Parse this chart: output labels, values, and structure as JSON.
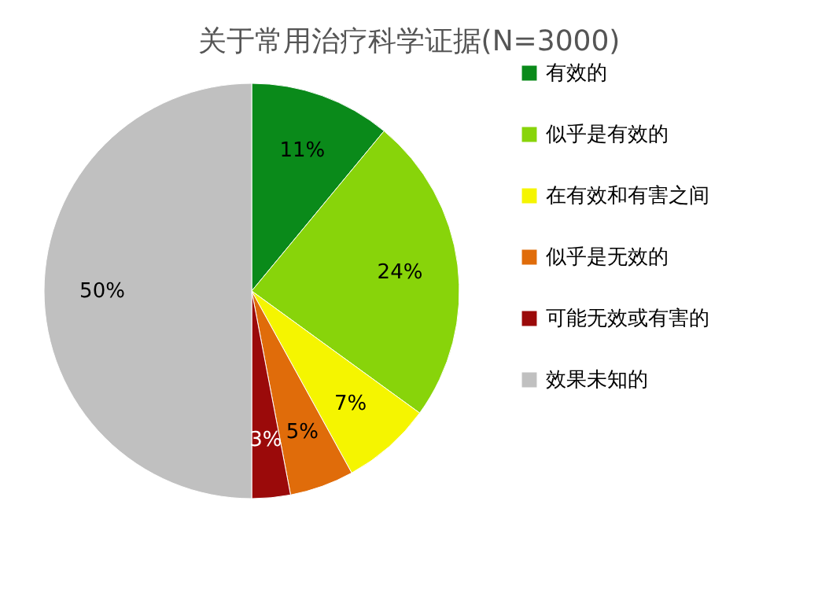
{
  "chart_data": {
    "type": "pie",
    "title": "关于常用治疗科学证据(N=3000)",
    "categories": [
      "有效的",
      "似乎是有效的",
      "在有效和有害之间",
      "似乎是无效的",
      "可能无效或有害的",
      "效果未知的"
    ],
    "values": [
      11,
      24,
      7,
      5,
      3,
      50
    ],
    "colors": [
      "#0a8a1a",
      "#88d40a",
      "#f5f500",
      "#e06c0a",
      "#9b0a0a",
      "#c0c0c0"
    ],
    "value_labels": [
      "11%",
      "24%",
      "7%",
      "5%",
      "3%",
      "50%"
    ],
    "legend": "right"
  }
}
